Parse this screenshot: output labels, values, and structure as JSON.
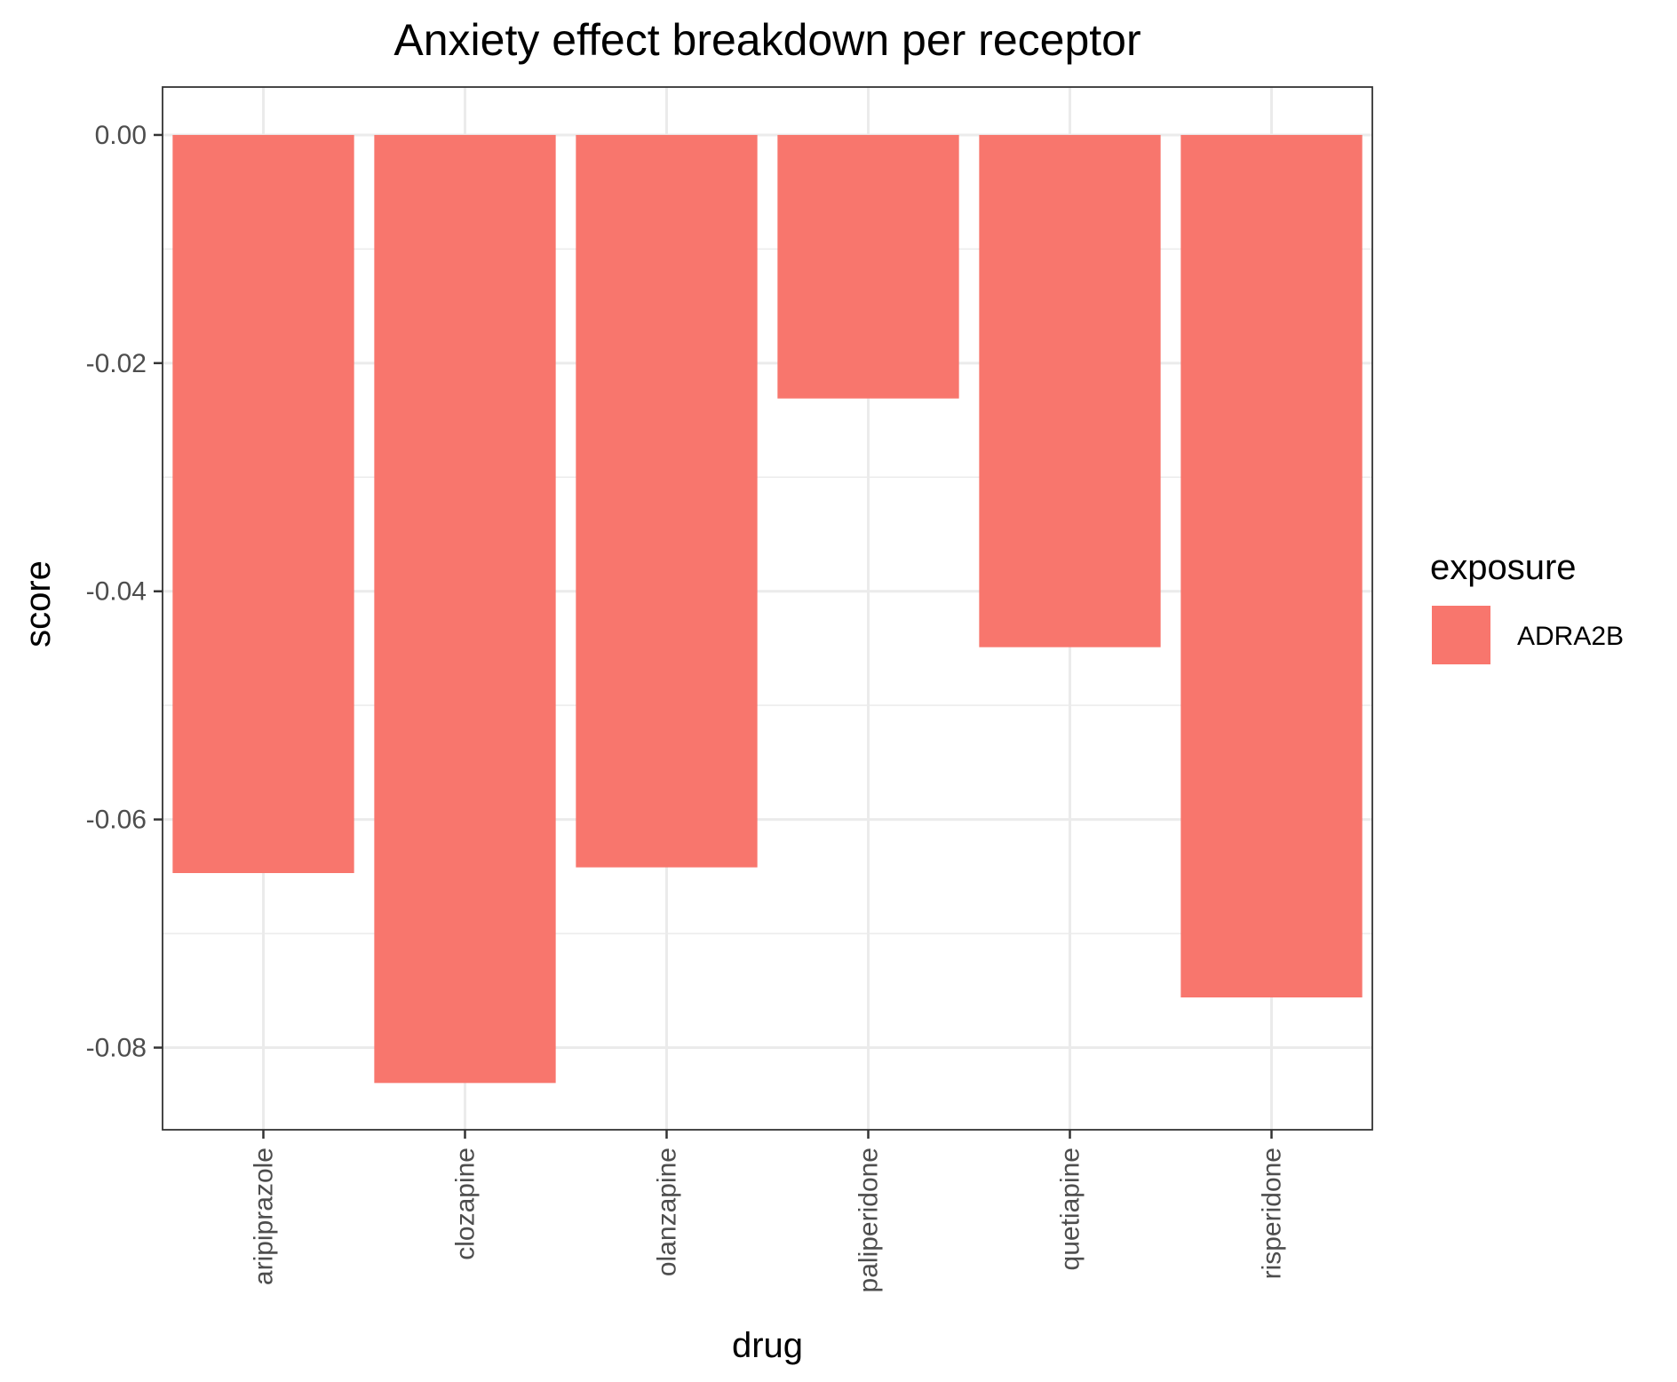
{
  "chart_data": {
    "type": "bar",
    "title": "Anxiety effect breakdown per receptor",
    "xlabel": "drug",
    "ylabel": "score",
    "categories": [
      "aripiprazole",
      "clozapine",
      "olanzapine",
      "paliperidone",
      "quetiapine",
      "risperidone"
    ],
    "series": [
      {
        "name": "ADRA2B",
        "color": "#F8766D",
        "values": [
          -0.0647,
          -0.0831,
          -0.0642,
          -0.0231,
          -0.0449,
          -0.0756
        ]
      }
    ],
    "ylim": [
      -0.0872,
      0.0042
    ],
    "yticks": [
      0.0,
      -0.02,
      -0.04,
      -0.06,
      -0.08
    ],
    "ytick_labels": [
      "0.00",
      "-0.02",
      "-0.04",
      "-0.06",
      "-0.08"
    ],
    "grid": true,
    "legend": {
      "title": "exposure",
      "position": "right"
    }
  }
}
